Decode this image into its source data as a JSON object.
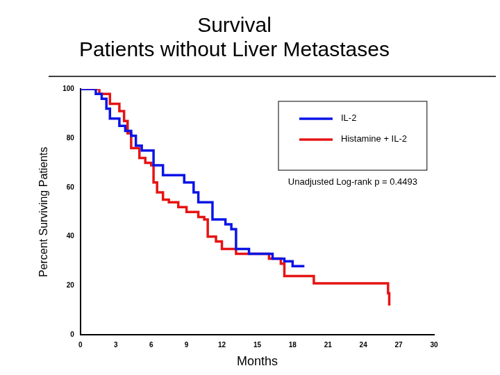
{
  "chart_data": {
    "type": "line",
    "title": [
      "Survival",
      "Patients without Liver Metastases"
    ],
    "x_label": "Months",
    "y_label": "Percent Surviving Patients",
    "annotation": "Unadjusted Log-rank p = 0.4493",
    "line_style": "step",
    "series": [
      {
        "name": "IL-2",
        "color": "#0a14e6",
        "x": [
          0,
          1,
          1.3,
          1.8,
          2.2,
          2.5,
          3.3,
          3.8,
          4.3,
          4.7,
          5.2,
          6.2,
          7,
          8.8,
          9.6,
          10,
          11.2,
          12.3,
          12.8,
          13.2,
          14.3,
          15.3,
          16.3,
          17.3,
          18,
          19
        ],
        "values": [
          100,
          100,
          98,
          96,
          92,
          88,
          85,
          83,
          81,
          77,
          75,
          69,
          65,
          62,
          58,
          54,
          47,
          45,
          43,
          35,
          33,
          33,
          31,
          30,
          28,
          28
        ]
      },
      {
        "name": "Histamine + IL-2",
        "color": "#e61414",
        "x": [
          0,
          1,
          1.6,
          2.5,
          3.3,
          3.7,
          4,
          4.3,
          5,
          5.5,
          6,
          6.2,
          6.5,
          7,
          7.5,
          8.3,
          9,
          10,
          10.5,
          10.8,
          11.5,
          12,
          13.2,
          16,
          17,
          17.3,
          19.8,
          26,
          26.1,
          26.2
        ],
        "values": [
          100,
          100,
          98,
          94,
          91,
          87,
          82,
          76,
          72,
          70,
          69,
          62,
          58,
          55,
          54,
          52,
          50,
          48,
          47,
          40,
          38,
          35,
          33,
          31,
          29,
          24,
          21,
          21,
          17,
          12
        ]
      }
    ],
    "xlim": [
      0,
      30
    ],
    "xticks": [
      0,
      3,
      6,
      9,
      12,
      15,
      18,
      21,
      24,
      27,
      30
    ],
    "ylim": [
      0,
      100
    ],
    "yticks": [
      0,
      20,
      40,
      60,
      80,
      100
    ],
    "grid": false,
    "legend": "top right"
  }
}
